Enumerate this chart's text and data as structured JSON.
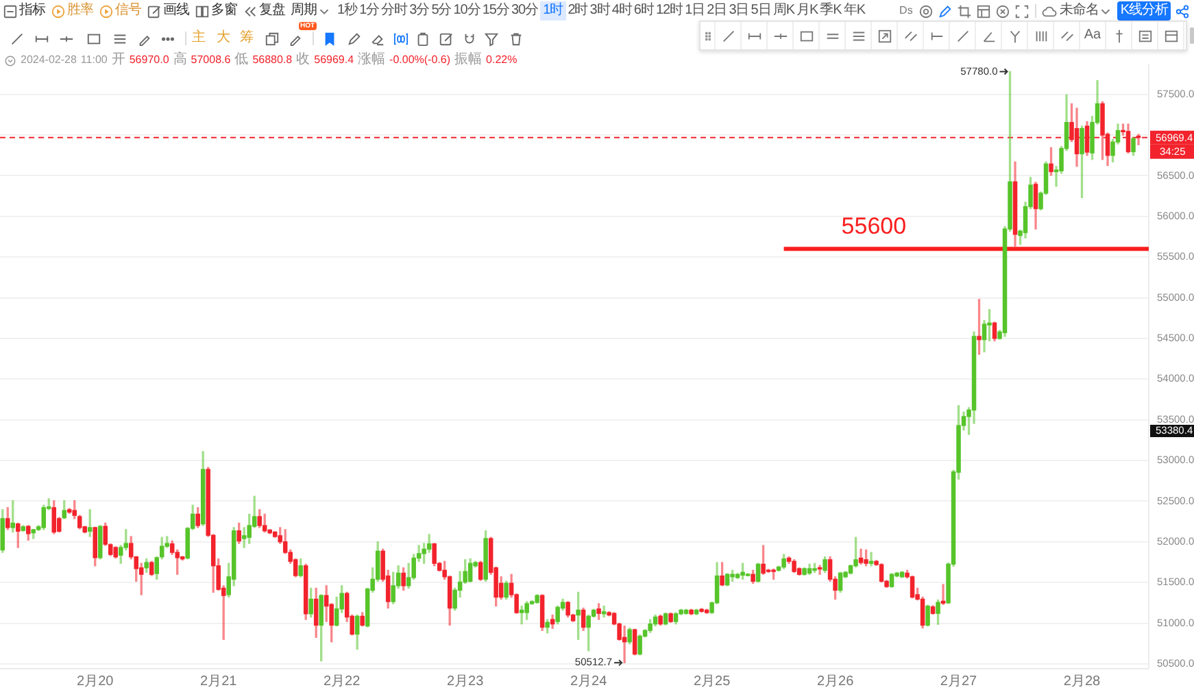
{
  "chart_data": {
    "type": "candlestick",
    "subtitle": "2024-02-28 11:00 开 56970.0 高 57008.6 低 56880.8 收 56969.4 涨幅 -0.00%(-0.6) 振幅 0.22%",
    "x": [
      "2024-02-19T06:00",
      "2024-02-19T07:00",
      "2024-02-19T08:00",
      "2024-02-19T09:00",
      "2024-02-19T10:00",
      "2024-02-19T11:00",
      "2024-02-19T12:00",
      "2024-02-19T13:00",
      "2024-02-19T14:00",
      "2024-02-19T15:00",
      "2024-02-19T16:00",
      "2024-02-19T17:00",
      "2024-02-19T18:00",
      "2024-02-19T19:00",
      "2024-02-19T20:00",
      "2024-02-19T21:00",
      "2024-02-19T22:00",
      "2024-02-19T23:00",
      "2024-02-20T00:00",
      "2024-02-20T01:00",
      "2024-02-20T02:00",
      "2024-02-20T03:00",
      "2024-02-20T04:00",
      "2024-02-20T05:00",
      "2024-02-20T06:00",
      "2024-02-20T07:00",
      "2024-02-20T08:00",
      "2024-02-20T09:00",
      "2024-02-20T10:00",
      "2024-02-20T11:00",
      "2024-02-20T12:00",
      "2024-02-20T13:00",
      "2024-02-20T14:00",
      "2024-02-20T15:00",
      "2024-02-20T16:00",
      "2024-02-20T17:00",
      "2024-02-20T18:00",
      "2024-02-20T19:00",
      "2024-02-20T20:00",
      "2024-02-20T21:00",
      "2024-02-20T22:00",
      "2024-02-20T23:00",
      "2024-02-21T00:00",
      "2024-02-21T01:00",
      "2024-02-21T02:00",
      "2024-02-21T03:00",
      "2024-02-21T04:00",
      "2024-02-21T05:00",
      "2024-02-21T06:00",
      "2024-02-21T07:00",
      "2024-02-21T08:00",
      "2024-02-21T09:00",
      "2024-02-21T10:00",
      "2024-02-21T11:00",
      "2024-02-21T12:00",
      "2024-02-21T13:00",
      "2024-02-21T14:00",
      "2024-02-21T15:00",
      "2024-02-21T16:00",
      "2024-02-21T17:00",
      "2024-02-21T18:00",
      "2024-02-21T19:00",
      "2024-02-21T20:00",
      "2024-02-21T21:00",
      "2024-02-21T22:00",
      "2024-02-21T23:00",
      "2024-02-22T00:00",
      "2024-02-22T01:00",
      "2024-02-22T02:00",
      "2024-02-22T03:00",
      "2024-02-22T04:00",
      "2024-02-22T05:00",
      "2024-02-22T06:00",
      "2024-02-22T07:00",
      "2024-02-22T08:00",
      "2024-02-22T09:00",
      "2024-02-22T10:00",
      "2024-02-22T11:00",
      "2024-02-22T12:00",
      "2024-02-22T13:00",
      "2024-02-22T14:00",
      "2024-02-22T15:00",
      "2024-02-22T16:00",
      "2024-02-22T17:00",
      "2024-02-22T18:00",
      "2024-02-22T19:00",
      "2024-02-22T20:00",
      "2024-02-22T21:00",
      "2024-02-22T22:00",
      "2024-02-22T23:00",
      "2024-02-23T00:00",
      "2024-02-23T01:00",
      "2024-02-23T02:00",
      "2024-02-23T03:00",
      "2024-02-23T04:00",
      "2024-02-23T05:00",
      "2024-02-23T06:00",
      "2024-02-23T07:00",
      "2024-02-23T08:00",
      "2024-02-23T09:00",
      "2024-02-23T10:00",
      "2024-02-23T11:00",
      "2024-02-23T12:00",
      "2024-02-23T13:00",
      "2024-02-23T14:00",
      "2024-02-23T15:00",
      "2024-02-23T16:00",
      "2024-02-23T17:00",
      "2024-02-23T18:00",
      "2024-02-23T19:00",
      "2024-02-23T20:00",
      "2024-02-23T21:00",
      "2024-02-23T22:00",
      "2024-02-23T23:00",
      "2024-02-24T00:00",
      "2024-02-24T01:00",
      "2024-02-24T02:00",
      "2024-02-24T03:00",
      "2024-02-24T04:00",
      "2024-02-24T05:00",
      "2024-02-24T06:00",
      "2024-02-24T07:00",
      "2024-02-24T08:00",
      "2024-02-24T09:00",
      "2024-02-24T10:00",
      "2024-02-24T11:00",
      "2024-02-24T12:00",
      "2024-02-24T13:00",
      "2024-02-24T14:00",
      "2024-02-24T15:00",
      "2024-02-24T16:00",
      "2024-02-24T17:00",
      "2024-02-24T18:00",
      "2024-02-24T19:00",
      "2024-02-24T20:00",
      "2024-02-24T21:00",
      "2024-02-24T22:00",
      "2024-02-24T23:00",
      "2024-02-25T00:00",
      "2024-02-25T01:00",
      "2024-02-25T02:00",
      "2024-02-25T03:00",
      "2024-02-25T04:00",
      "2024-02-25T05:00",
      "2024-02-25T06:00",
      "2024-02-25T07:00",
      "2024-02-25T08:00",
      "2024-02-25T09:00",
      "2024-02-25T10:00",
      "2024-02-25T11:00",
      "2024-02-25T12:00",
      "2024-02-25T13:00",
      "2024-02-25T14:00",
      "2024-02-25T15:00",
      "2024-02-25T16:00",
      "2024-02-25T17:00",
      "2024-02-25T18:00",
      "2024-02-25T19:00",
      "2024-02-25T20:00",
      "2024-02-25T21:00",
      "2024-02-25T22:00",
      "2024-02-25T23:00",
      "2024-02-26T00:00",
      "2024-02-26T01:00",
      "2024-02-26T02:00",
      "2024-02-26T03:00",
      "2024-02-26T04:00",
      "2024-02-26T05:00",
      "2024-02-26T06:00",
      "2024-02-26T07:00",
      "2024-02-26T08:00",
      "2024-02-26T09:00",
      "2024-02-26T10:00",
      "2024-02-26T11:00",
      "2024-02-26T12:00",
      "2024-02-26T13:00",
      "2024-02-26T14:00",
      "2024-02-26T15:00",
      "2024-02-26T16:00",
      "2024-02-26T17:00",
      "2024-02-26T18:00",
      "2024-02-26T19:00",
      "2024-02-26T20:00",
      "2024-02-26T21:00",
      "2024-02-26T22:00",
      "2024-02-26T23:00",
      "2024-02-27T00:00",
      "2024-02-27T01:00",
      "2024-02-27T02:00",
      "2024-02-27T03:00",
      "2024-02-27T04:00",
      "2024-02-27T05:00",
      "2024-02-27T06:00",
      "2024-02-27T07:00",
      "2024-02-27T08:00",
      "2024-02-27T09:00",
      "2024-02-27T10:00",
      "2024-02-27T11:00",
      "2024-02-27T12:00",
      "2024-02-27T13:00",
      "2024-02-27T14:00",
      "2024-02-27T15:00",
      "2024-02-27T16:00",
      "2024-02-27T17:00",
      "2024-02-27T18:00",
      "2024-02-27T19:00",
      "2024-02-27T20:00",
      "2024-02-27T21:00",
      "2024-02-27T22:00",
      "2024-02-27T23:00",
      "2024-02-28T00:00",
      "2024-02-28T01:00",
      "2024-02-28T02:00",
      "2024-02-28T03:00",
      "2024-02-28T04:00",
      "2024-02-28T05:00",
      "2024-02-28T06:00",
      "2024-02-28T07:00",
      "2024-02-28T08:00",
      "2024-02-28T09:00",
      "2024-02-28T10:00",
      "2024-02-28T11:00"
    ],
    "ohlc": [
      [
        51900,
        52395,
        51870,
        52285
      ],
      [
        52285,
        52420,
        52150,
        52175
      ],
      [
        52175,
        52505,
        52120,
        52230
      ],
      [
        52220,
        52230,
        51930,
        52130
      ],
      [
        52140,
        52200,
        52130,
        52185
      ],
      [
        52190,
        52200,
        52020,
        52100
      ],
      [
        52110,
        52150,
        52040,
        52150
      ],
      [
        52150,
        52200,
        52140,
        52185
      ],
      [
        52175,
        52450,
        52150,
        52420
      ],
      [
        52410,
        52530,
        52395,
        52430
      ],
      [
        52420,
        52505,
        52100,
        52120
      ],
      [
        52285,
        52300,
        52120,
        52130
      ],
      [
        52295,
        52505,
        52285,
        52385
      ],
      [
        52395,
        52410,
        52350,
        52365
      ],
      [
        52385,
        52505,
        52285,
        52325
      ],
      [
        52310,
        52325,
        52160,
        52175
      ],
      [
        52185,
        52190,
        52110,
        52120
      ],
      [
        52130,
        52395,
        52065,
        52175
      ],
      [
        52175,
        52180,
        51705,
        51805
      ],
      [
        51805,
        52200,
        51790,
        52190
      ],
      [
        52190,
        52230,
        51955,
        51970
      ],
      [
        51965,
        51975,
        51830,
        51845
      ],
      [
        51930,
        51940,
        51800,
        51815
      ],
      [
        51835,
        51955,
        51735,
        51930
      ],
      [
        51930,
        52150,
        51900,
        51980
      ],
      [
        51980,
        52065,
        51790,
        51815
      ],
      [
        51815,
        51820,
        51515,
        51670
      ],
      [
        51680,
        51735,
        51350,
        51600
      ],
      [
        51680,
        51790,
        51625,
        51745
      ],
      [
        51745,
        51760,
        51585,
        51600
      ],
      [
        51610,
        51815,
        51540,
        51805
      ],
      [
        51815,
        52055,
        51790,
        51945
      ],
      [
        51945,
        52065,
        51930,
        51980
      ],
      [
        51975,
        52010,
        51845,
        51870
      ],
      [
        51870,
        51900,
        51600,
        51805
      ],
      [
        51815,
        51820,
        51775,
        51790
      ],
      [
        51800,
        52175,
        51790,
        52165
      ],
      [
        52165,
        52450,
        52150,
        52340
      ],
      [
        52340,
        52420,
        52175,
        52200
      ],
      [
        52220,
        53110,
        52200,
        52890
      ],
      [
        52890,
        52915,
        52065,
        52080
      ],
      [
        52080,
        52090,
        51380,
        51705
      ],
      [
        51705,
        51790,
        51405,
        51415
      ],
      [
        51430,
        51460,
        50800,
        51340
      ],
      [
        51350,
        51735,
        51320,
        51570
      ],
      [
        51540,
        52175,
        51460,
        52135
      ],
      [
        52135,
        52230,
        51980,
        52010
      ],
      [
        52040,
        52175,
        51930,
        52075
      ],
      [
        52055,
        52340,
        51980,
        52200
      ],
      [
        52190,
        52560,
        52175,
        52310
      ],
      [
        52310,
        52395,
        52175,
        52200
      ],
      [
        52200,
        52340,
        52120,
        52135
      ],
      [
        52145,
        52150,
        52100,
        52110
      ],
      [
        52120,
        52125,
        52055,
        52065
      ],
      [
        52075,
        52175,
        51980,
        52000
      ],
      [
        52000,
        52150,
        51855,
        51870
      ],
      [
        51870,
        51900,
        51735,
        51760
      ],
      [
        51780,
        51790,
        51570,
        51585
      ],
      [
        51585,
        51790,
        51570,
        51705
      ],
      [
        51705,
        51725,
        51045,
        51115
      ],
      [
        51115,
        51430,
        51075,
        51295
      ],
      [
        51295,
        51430,
        50825,
        50975
      ],
      [
        50975,
        51350,
        50535,
        51340
      ],
      [
        51340,
        51460,
        51020,
        51210
      ],
      [
        51230,
        51240,
        50770,
        50975
      ],
      [
        50975,
        51320,
        50965,
        51175
      ],
      [
        51175,
        51460,
        51130,
        51365
      ],
      [
        51365,
        51380,
        51020,
        51075
      ],
      [
        51085,
        51100,
        50855,
        50865
      ],
      [
        50865,
        51100,
        50680,
        51085
      ],
      [
        51085,
        51130,
        50965,
        50975
      ],
      [
        50965,
        51430,
        50955,
        51420
      ],
      [
        51405,
        51680,
        51380,
        51540
      ],
      [
        51540,
        52000,
        51515,
        51885
      ],
      [
        51885,
        51910,
        51515,
        51540
      ],
      [
        51580,
        51650,
        51185,
        51265
      ],
      [
        51265,
        51625,
        51240,
        51460
      ],
      [
        51460,
        51705,
        51430,
        51615
      ],
      [
        51615,
        51680,
        51405,
        51460
      ],
      [
        51460,
        51735,
        51430,
        51560
      ],
      [
        51560,
        51845,
        51540,
        51800
      ],
      [
        51800,
        51955,
        51760,
        51855
      ],
      [
        51855,
        51980,
        51735,
        51910
      ],
      [
        51910,
        52090,
        51870,
        51975
      ],
      [
        51975,
        51980,
        51705,
        51735
      ],
      [
        51735,
        51745,
        51640,
        51650
      ],
      [
        51650,
        51760,
        51540,
        51570
      ],
      [
        51570,
        51580,
        50975,
        51185
      ],
      [
        51185,
        51430,
        51160,
        51405
      ],
      [
        51405,
        51635,
        51320,
        51505
      ],
      [
        51505,
        51780,
        51490,
        51635
      ],
      [
        51515,
        51790,
        51505,
        51735
      ],
      [
        51705,
        51760,
        51690,
        51745
      ],
      [
        51745,
        51760,
        51525,
        51540
      ],
      [
        51540,
        52135,
        51515,
        52040
      ],
      [
        52040,
        52055,
        51600,
        51625
      ],
      [
        51680,
        51690,
        51210,
        51320
      ],
      [
        51490,
        51570,
        51295,
        51320
      ],
      [
        51320,
        51515,
        51295,
        51490
      ],
      [
        51490,
        51600,
        51320,
        51350
      ],
      [
        51350,
        51360,
        51120,
        51130
      ],
      [
        51130,
        51210,
        50990,
        51160
      ],
      [
        51130,
        51265,
        51045,
        51240
      ],
      [
        51240,
        51275,
        51230,
        51265
      ],
      [
        51255,
        51350,
        51245,
        51340
      ],
      [
        51340,
        51350,
        50910,
        50950
      ],
      [
        50950,
        51045,
        50880,
        51010
      ],
      [
        51045,
        51100,
        50935,
        50990
      ],
      [
        51020,
        51210,
        50990,
        51195
      ],
      [
        51185,
        51295,
        51160,
        51255
      ],
      [
        51255,
        51265,
        51075,
        51100
      ],
      [
        51100,
        51110,
        51020,
        51030
      ],
      [
        51100,
        51380,
        50800,
        51160
      ],
      [
        51160,
        51185,
        50910,
        50950
      ],
      [
        50950,
        51100,
        50660,
        51085
      ],
      [
        51085,
        51170,
        51075,
        51160
      ],
      [
        51175,
        51240,
        51045,
        51120
      ],
      [
        51115,
        51210,
        51075,
        51140
      ],
      [
        51130,
        51140,
        51090,
        51100
      ],
      [
        51120,
        51130,
        50980,
        50990
      ],
      [
        50990,
        51000,
        50790,
        50800
      ],
      [
        50825,
        50965,
        50512.7,
        50770
      ],
      [
        50770,
        50940,
        50745,
        50920
      ],
      [
        50920,
        50925,
        50610,
        50620
      ],
      [
        50620,
        50855,
        50610,
        50840
      ],
      [
        50840,
        50920,
        50830,
        50910
      ],
      [
        50910,
        51045,
        50885,
        50990
      ],
      [
        50990,
        51100,
        50965,
        51075
      ],
      [
        51085,
        51100,
        50975,
        50990
      ],
      [
        50990,
        51125,
        50980,
        51115
      ],
      [
        51115,
        51125,
        51010,
        51020
      ],
      [
        51020,
        51130,
        50990,
        51115
      ],
      [
        51115,
        51170,
        51105,
        51160
      ],
      [
        51120,
        51170,
        51110,
        51160
      ],
      [
        51160,
        51170,
        51105,
        51115
      ],
      [
        51115,
        51170,
        51105,
        51160
      ],
      [
        51170,
        51180,
        51135,
        51145
      ],
      [
        51160,
        51170,
        51120,
        51130
      ],
      [
        51130,
        51260,
        51120,
        51250
      ],
      [
        51250,
        51745,
        51240,
        51580
      ],
      [
        51580,
        51745,
        51460,
        51470
      ],
      [
        51470,
        51610,
        51460,
        51600
      ],
      [
        51570,
        51650,
        51515,
        51600
      ],
      [
        51560,
        51610,
        51550,
        51600
      ],
      [
        51590,
        51735,
        51540,
        51625
      ],
      [
        51585,
        51610,
        51580,
        51600
      ],
      [
        51600,
        51650,
        51490,
        51515
      ],
      [
        51515,
        51735,
        51505,
        51725
      ],
      [
        51725,
        51955,
        51600,
        51615
      ],
      [
        51650,
        51660,
        51625,
        51635
      ],
      [
        51650,
        51665,
        51540,
        51635
      ],
      [
        51650,
        51700,
        51640,
        51690
      ],
      [
        51690,
        51845,
        51670,
        51790
      ],
      [
        51800,
        51815,
        51735,
        51760
      ],
      [
        51760,
        51780,
        51625,
        51635
      ],
      [
        51670,
        51680,
        51590,
        51600
      ],
      [
        51600,
        51680,
        51590,
        51670
      ],
      [
        51615,
        51725,
        51600,
        51670
      ],
      [
        51650,
        51735,
        51625,
        51670
      ],
      [
        51680,
        51710,
        51600,
        51665
      ],
      [
        51650,
        51815,
        51625,
        51780
      ],
      [
        51780,
        51815,
        51515,
        51540
      ],
      [
        51540,
        51570,
        51295,
        51405
      ],
      [
        51405,
        51625,
        51380,
        51615
      ],
      [
        51570,
        51635,
        51560,
        51625
      ],
      [
        51615,
        51715,
        51605,
        51705
      ],
      [
        51705,
        52055,
        51690,
        51780
      ],
      [
        51800,
        51910,
        51725,
        51745
      ],
      [
        51780,
        51900,
        51705,
        51735
      ],
      [
        51735,
        51870,
        51705,
        51760
      ],
      [
        51760,
        51770,
        51710,
        51720
      ],
      [
        51720,
        51730,
        51505,
        51515
      ],
      [
        51515,
        51525,
        51440,
        51450
      ],
      [
        51450,
        51610,
        51440,
        51600
      ],
      [
        51580,
        51625,
        51570,
        51615
      ],
      [
        51570,
        51635,
        51560,
        51625
      ],
      [
        51615,
        51650,
        51555,
        51570
      ],
      [
        51570,
        51580,
        51310,
        51320
      ],
      [
        51350,
        51430,
        51285,
        51295
      ],
      [
        51295,
        51320,
        50940,
        50975
      ],
      [
        50975,
        51220,
        50965,
        51210
      ],
      [
        51200,
        51215,
        51110,
        51120
      ],
      [
        51120,
        51285,
        50985,
        51255
      ],
      [
        51270,
        51475,
        51230,
        51245
      ],
      [
        51250,
        51740,
        51240,
        51725
      ],
      [
        51725,
        52880,
        51700,
        52860
      ],
      [
        52855,
        53675,
        52770,
        53430
      ],
      [
        53430,
        53595,
        53375,
        53540
      ],
      [
        53540,
        53650,
        53320,
        53620
      ],
      [
        53620,
        54580,
        53455,
        54525
      ],
      [
        54525,
        54980,
        54305,
        54485
      ],
      [
        54485,
        54720,
        54335,
        54675
      ],
      [
        54665,
        54855,
        54470,
        54690
      ],
      [
        54690,
        54700,
        54470,
        54500
      ],
      [
        54500,
        54600,
        54490,
        54580
      ],
      [
        54570,
        55875,
        54525,
        55845
      ],
      [
        55845,
        57780,
        55820,
        56425
      ],
      [
        56425,
        56670,
        55635,
        55780
      ],
      [
        55765,
        55830,
        55655,
        55820
      ],
      [
        55800,
        56175,
        55735,
        56120
      ],
      [
        56120,
        56480,
        56095,
        56385
      ],
      [
        56395,
        56420,
        55845,
        56095
      ],
      [
        56095,
        56300,
        56080,
        56285
      ],
      [
        56285,
        56670,
        56270,
        56645
      ],
      [
        56645,
        56845,
        56505,
        56550
      ],
      [
        56550,
        56615,
        56370,
        56570
      ],
      [
        56560,
        56860,
        56530,
        56835
      ],
      [
        56835,
        57495,
        56810,
        57155
      ],
      [
        57155,
        57385,
        56920,
        56945
      ],
      [
        57080,
        57330,
        56615,
        56770
      ],
      [
        56770,
        57110,
        56230,
        57080
      ],
      [
        57110,
        57165,
        56750,
        56790
      ],
      [
        56780,
        57230,
        56700,
        57155
      ],
      [
        57155,
        57670,
        57135,
        57385
      ],
      [
        57385,
        57410,
        56700,
        57000
      ],
      [
        57010,
        57025,
        56625,
        56750
      ],
      [
        56750,
        56945,
        56670,
        56915
      ],
      [
        56915,
        57135,
        56890,
        57055
      ],
      [
        57055,
        57135,
        57000,
        57040
      ],
      [
        57045,
        57135,
        56780,
        56795
      ],
      [
        56795,
        56970,
        56750,
        56955
      ],
      [
        56970.0,
        57008.6,
        56880.8,
        56969.4
      ]
    ],
    "colors": [
      "#56c42a",
      "#f2232c",
      "#56c42a",
      "#f2232c",
      "#56c42a",
      "#f2232c",
      "#56c42a",
      "#56c42a",
      "#56c42a",
      "#56c42a",
      "#f2232c",
      "#f2232c",
      "#56c42a",
      "#f2232c",
      "#f2232c",
      "#f2232c",
      "#f2232c",
      "#56c42a",
      "#f2232c",
      "#56c42a",
      "#f2232c",
      "#f2232c",
      "#f2232c",
      "#56c42a",
      "#56c42a",
      "#f2232c",
      "#f2232c",
      "#f2232c",
      "#56c42a",
      "#f2232c",
      "#56c42a",
      "#56c42a",
      "#56c42a",
      "#f2232c",
      "#f2232c",
      "#f2232c",
      "#56c42a",
      "#56c42a",
      "#f2232c",
      "#56c42a",
      "#f2232c",
      "#f2232c",
      "#f2232c",
      "#f2232c",
      "#56c42a",
      "#56c42a",
      "#f2232c",
      "#56c42a",
      "#56c42a",
      "#56c42a",
      "#f2232c",
      "#f2232c",
      "#f2232c",
      "#f2232c",
      "#f2232c",
      "#f2232c",
      "#f2232c",
      "#f2232c",
      "#56c42a",
      "#f2232c",
      "#56c42a",
      "#f2232c",
      "#56c42a",
      "#f2232c",
      "#f2232c",
      "#56c42a",
      "#56c42a",
      "#f2232c",
      "#f2232c",
      "#56c42a",
      "#f2232c",
      "#56c42a",
      "#56c42a",
      "#56c42a",
      "#f2232c",
      "#f2232c",
      "#56c42a",
      "#56c42a",
      "#f2232c",
      "#56c42a",
      "#56c42a",
      "#56c42a",
      "#56c42a",
      "#56c42a",
      "#f2232c",
      "#f2232c",
      "#f2232c",
      "#f2232c",
      "#56c42a",
      "#56c42a",
      "#56c42a",
      "#56c42a",
      "#56c42a",
      "#f2232c",
      "#56c42a",
      "#f2232c",
      "#f2232c",
      "#f2232c",
      "#56c42a",
      "#f2232c",
      "#f2232c",
      "#56c42a",
      "#56c42a",
      "#56c42a",
      "#56c42a",
      "#f2232c",
      "#56c42a",
      "#f2232c",
      "#56c42a",
      "#56c42a",
      "#f2232c",
      "#f2232c",
      "#56c42a",
      "#f2232c",
      "#56c42a",
      "#56c42a",
      "#f2232c",
      "#56c42a",
      "#f2232c",
      "#f2232c",
      "#f2232c",
      "#f2232c",
      "#56c42a",
      "#f2232c",
      "#56c42a",
      "#56c42a",
      "#56c42a",
      "#56c42a",
      "#f2232c",
      "#56c42a",
      "#f2232c",
      "#56c42a",
      "#56c42a",
      "#56c42a",
      "#f2232c",
      "#56c42a",
      "#f2232c",
      "#f2232c",
      "#56c42a",
      "#56c42a",
      "#f2232c",
      "#56c42a",
      "#56c42a",
      "#56c42a",
      "#56c42a",
      "#56c42a",
      "#f2232c",
      "#56c42a",
      "#f2232c",
      "#f2232c",
      "#f2232c",
      "#56c42a",
      "#56c42a",
      "#f2232c",
      "#f2232c",
      "#f2232c",
      "#56c42a",
      "#56c42a",
      "#56c42a",
      "#f2232c",
      "#56c42a",
      "#f2232c",
      "#f2232c",
      "#56c42a",
      "#56c42a",
      "#56c42a",
      "#56c42a",
      "#f2232c",
      "#f2232c",
      "#56c42a",
      "#f2232c",
      "#f2232c",
      "#f2232c",
      "#56c42a",
      "#56c42a",
      "#56c42a",
      "#f2232c",
      "#f2232c",
      "#f2232c",
      "#f2232c",
      "#56c42a",
      "#f2232c",
      "#56c42a",
      "#f2232c",
      "#56c42a",
      "#56c42a",
      "#56c42a",
      "#56c42a",
      "#56c42a",
      "#56c42a",
      "#f2232c",
      "#56c42a",
      "#56c42a",
      "#f2232c",
      "#56c42a",
      "#56c42a",
      "#56c42a",
      "#f2232c",
      "#56c42a",
      "#56c42a",
      "#56c42a",
      "#f2232c",
      "#56c42a",
      "#56c42a",
      "#f2232c",
      "#56c42a",
      "#56c42a",
      "#56c42a",
      "#f2232c",
      "#f2232c",
      "#56c42a",
      "#f2232c",
      "#56c42a",
      "#56c42a",
      "#f2232c",
      "#f2232c",
      "#56c42a",
      "#56c42a",
      "#f2232c",
      "#f2232c",
      "#56c42a",
      "#f2232c"
    ],
    "series": [
      {
        "type": "line",
        "name": "55600",
        "color": "#fa1e1e",
        "x": [
          "2024-02-25T14:00",
          "2024-02-28T13:00"
        ],
        "values": [
          55600,
          55600
        ]
      }
    ],
    "ref_lines": [
      {
        "axis": "y",
        "value": 56969.4,
        "label": "56969.4",
        "color": "#f2232c",
        "line_style": "dashed"
      }
    ],
    "xlim": [
      "2024-02-19T05:30",
      "2024-02-28T13:00"
    ],
    "xticks": [
      {
        "value": "2024-02-20",
        "label": "2月20"
      },
      {
        "value": "2024-02-21",
        "label": "2月21"
      },
      {
        "value": "2024-02-22",
        "label": "2月22"
      },
      {
        "value": "2024-02-23",
        "label": "2月23"
      },
      {
        "value": "2024-02-24",
        "label": "2月24"
      },
      {
        "value": "2024-02-25",
        "label": "2月25"
      },
      {
        "value": "2024-02-26",
        "label": "2月26"
      },
      {
        "value": "2024-02-27",
        "label": "2月27"
      },
      {
        "value": "2024-02-28",
        "label": "2月28"
      }
    ],
    "ylim": [
      50440,
      57860
    ],
    "yticks": [
      {
        "value": 50500,
        "label": "50500.0"
      },
      {
        "value": 51000,
        "label": "51000.0"
      },
      {
        "value": 51500,
        "label": "51500.0"
      },
      {
        "value": 52000,
        "label": "52000.0"
      },
      {
        "value": 52500,
        "label": "52500.0"
      },
      {
        "value": 53000,
        "label": "53000.0"
      },
      {
        "value": 53500,
        "label": "53500.0"
      },
      {
        "value": 54000,
        "label": "54000.0"
      },
      {
        "value": 54500,
        "label": "54500.0"
      },
      {
        "value": 55000,
        "label": "55000.0"
      },
      {
        "value": 55500,
        "label": "55500.0"
      },
      {
        "value": 56000,
        "label": "56000.0"
      },
      {
        "value": 56500,
        "label": "56500.0"
      },
      {
        "value": 57000,
        "label": null
      },
      {
        "value": 57500,
        "label": "57500.0"
      }
    ],
    "grid": "y",
    "annotations": [
      "指标",
      "胜率",
      "信号",
      "画线",
      "多窗",
      "复盘",
      "周期",
      "1秒",
      "1分",
      "分时",
      "3分",
      "5分",
      "10分",
      "15分",
      "30分",
      "1时",
      "2时",
      "3时",
      "4时",
      "6时",
      "12时",
      "1日",
      "2日",
      "3日",
      "5日",
      "周K",
      "月K",
      "季K",
      "年K",
      "Ds",
      "未命名",
      "K线分析",
      "主",
      "大",
      "筹",
      "HOT",
      "Aa",
      "34:25",
      "53380.4",
      {
        "text": "57780.0",
        "x": "2024-02-27T10:00",
        "y": 57780
      },
      {
        "text": "50512.7",
        "x": "2024-02-24T07:00",
        "y": 50512.7
      }
    ]
  }
}
